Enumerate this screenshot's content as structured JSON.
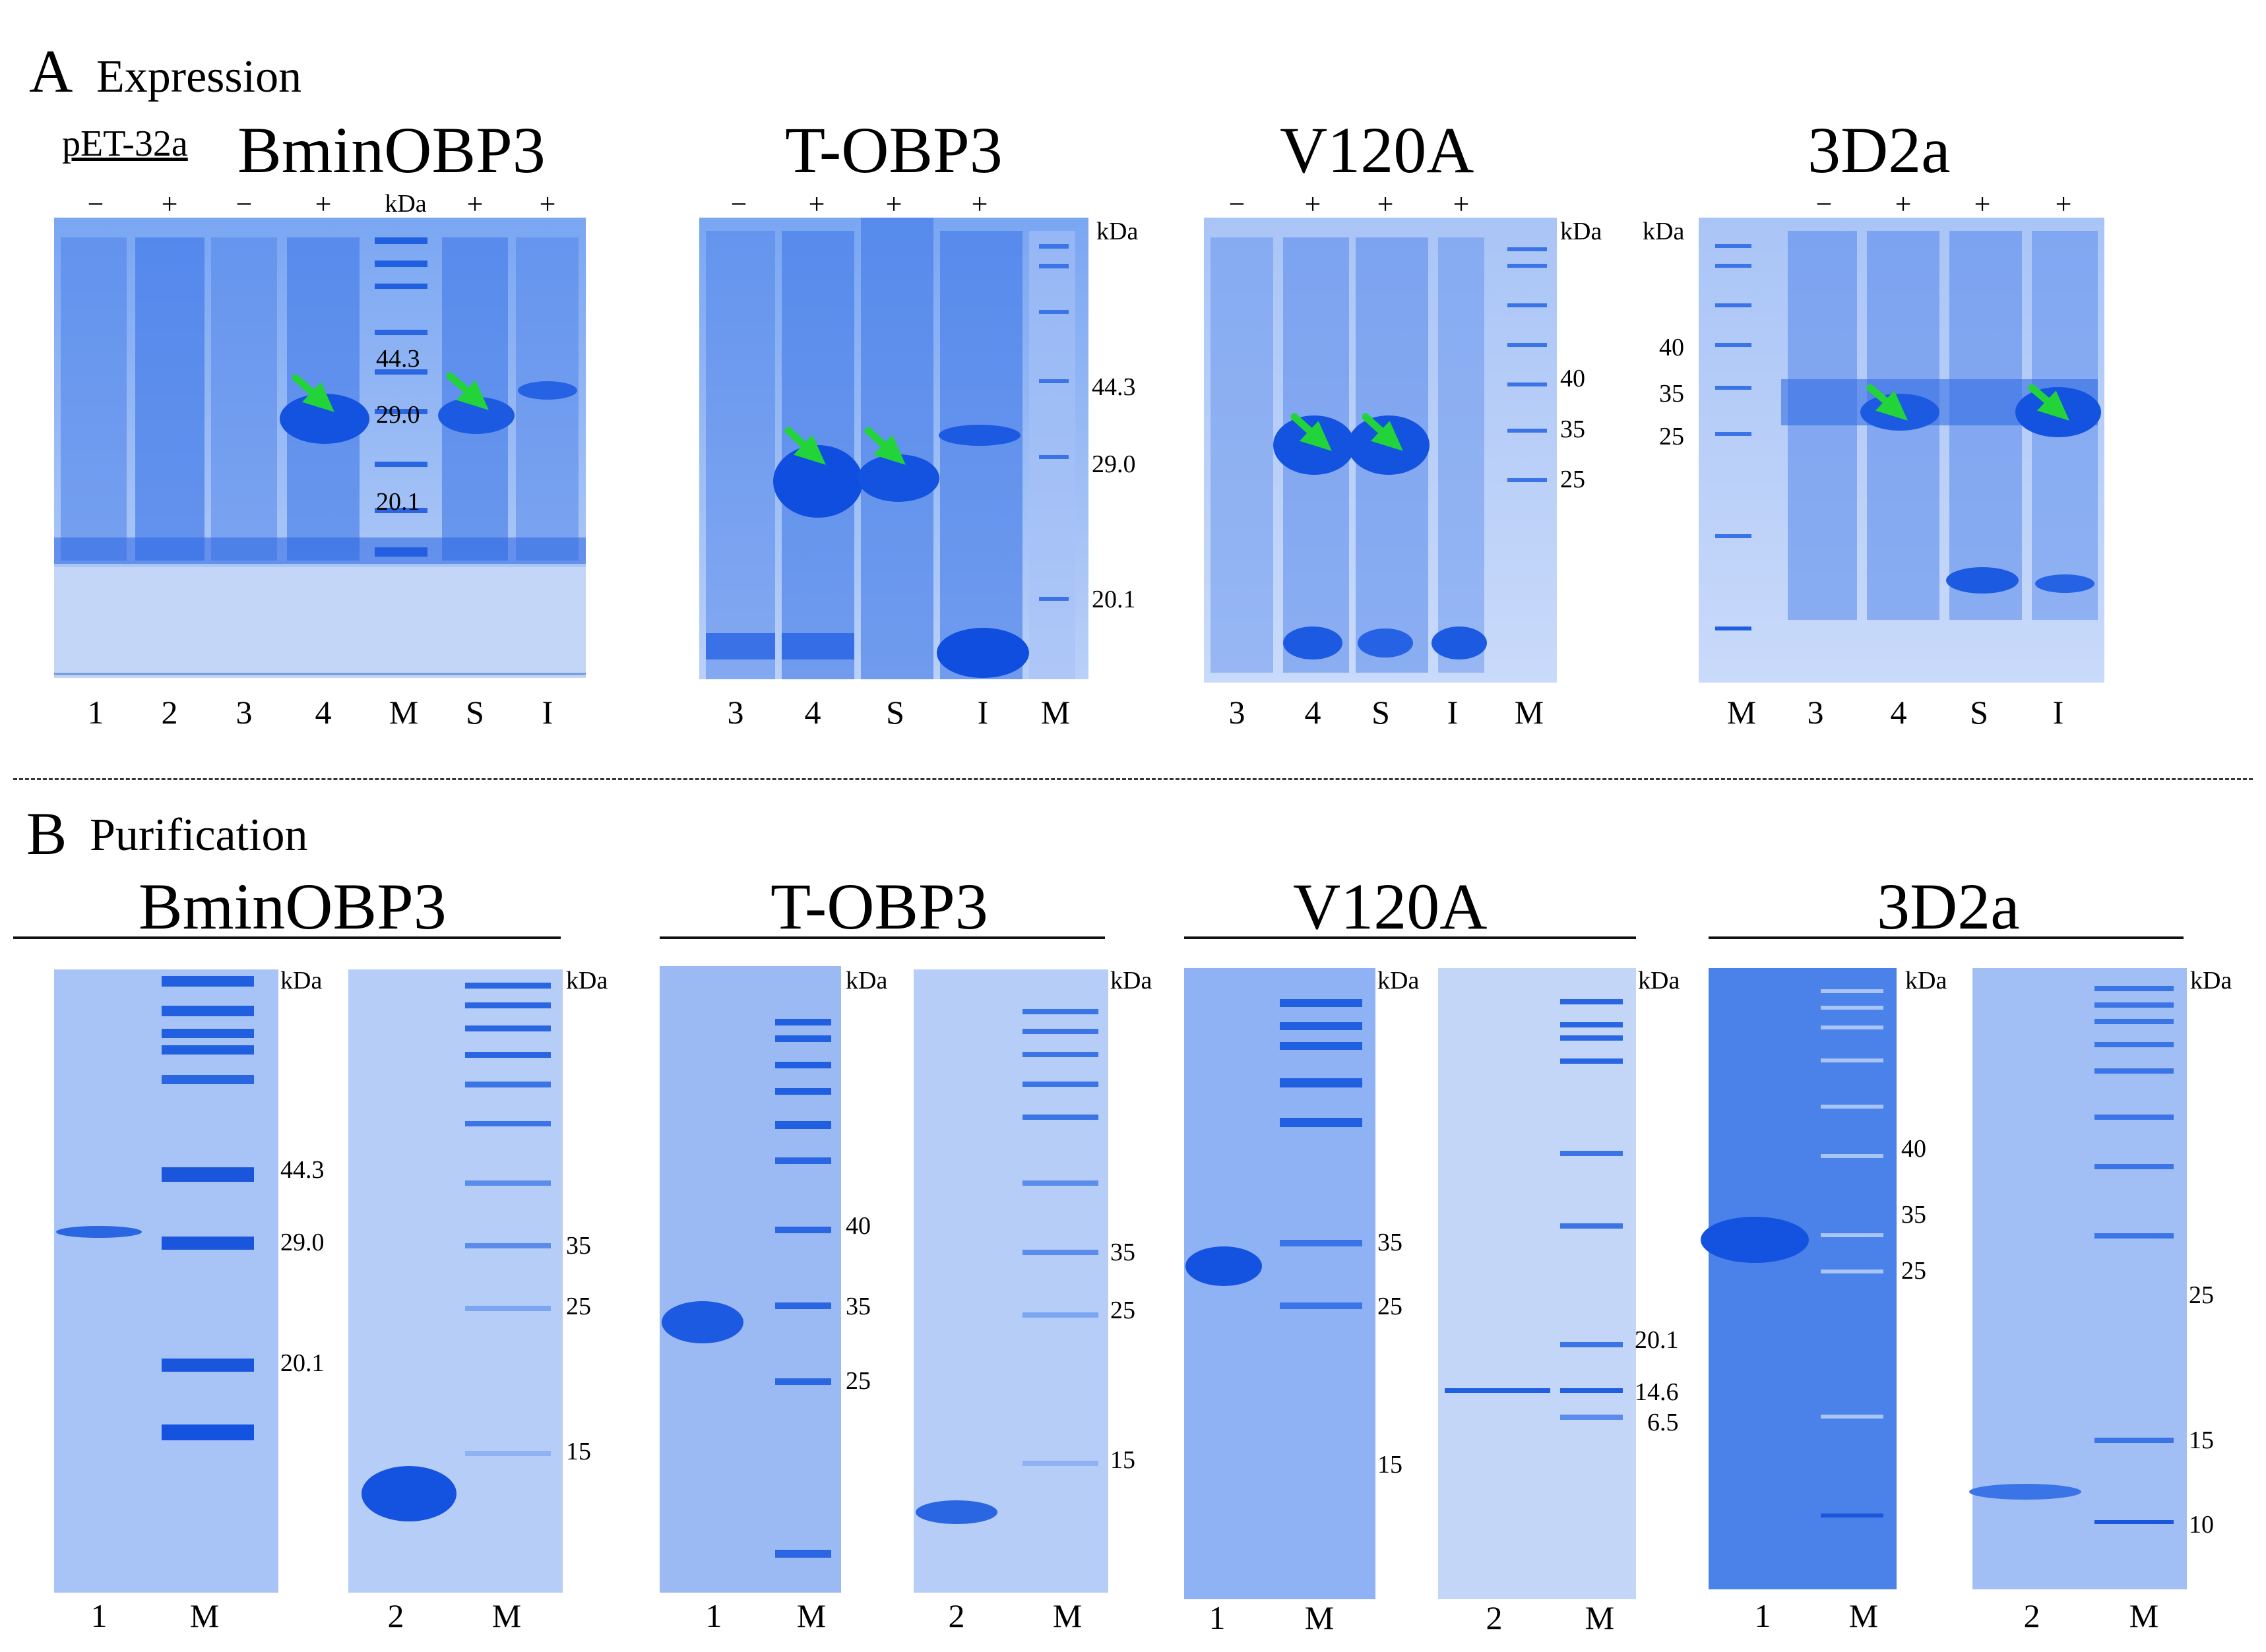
{
  "figure": {
    "panel_a": {
      "letter": "A",
      "title": "Expression"
    },
    "panel_b": {
      "letter": "B",
      "title": "Purification"
    },
    "vector_label": "pET-32a",
    "unit_label": "kDa",
    "arrow_color": "#22d43a",
    "gel_color": "#6b9cf0"
  },
  "expression": [
    {
      "protein": "BminOBP3",
      "induction": [
        "−",
        "+",
        "−",
        "+",
        "kDa",
        "+",
        "+"
      ],
      "lanes": [
        "1",
        "2",
        "3",
        "4",
        "M",
        "S",
        "I"
      ],
      "markers": [
        "44.3",
        "29.0",
        "20.1"
      ]
    },
    {
      "protein": "T-OBP3",
      "induction": [
        "−",
        "+",
        "+",
        "+"
      ],
      "lanes": [
        "3",
        "4",
        "S",
        "I",
        "M"
      ],
      "markers": [
        "44.3",
        "29.0",
        "20.1"
      ]
    },
    {
      "protein": "V120A",
      "induction": [
        "−",
        "+",
        "+",
        "+"
      ],
      "lanes": [
        "3",
        "4",
        "S",
        "I",
        "M"
      ],
      "markers": [
        "40",
        "35",
        "25"
      ]
    },
    {
      "protein": "3D2a",
      "induction": [
        "−",
        "+",
        "+",
        "+"
      ],
      "lanes": [
        "M",
        "3",
        "4",
        "S",
        "I"
      ],
      "markers": [
        "40",
        "35",
        "25"
      ]
    }
  ],
  "purification": [
    {
      "protein": "BminOBP3",
      "gels": [
        {
          "lanes": [
            "1",
            "M"
          ],
          "markers": [
            "44.3",
            "29.0",
            "20.1"
          ]
        },
        {
          "lanes": [
            "2",
            "M"
          ],
          "markers": [
            "35",
            "25",
            "15"
          ]
        }
      ]
    },
    {
      "protein": "T-OBP3",
      "gels": [
        {
          "lanes": [
            "1",
            "M"
          ],
          "markers": [
            "40",
            "35",
            "25"
          ]
        },
        {
          "lanes": [
            "2",
            "M"
          ],
          "markers": [
            "35",
            "25",
            "15"
          ]
        }
      ]
    },
    {
      "protein": "V120A",
      "gels": [
        {
          "lanes": [
            "1",
            "M"
          ],
          "markers": [
            "35",
            "25",
            "15"
          ]
        },
        {
          "lanes": [
            "2",
            "M"
          ],
          "markers": [
            "20.1",
            "14.6",
            "6.5"
          ]
        }
      ]
    },
    {
      "protein": "3D2a",
      "gels": [
        {
          "lanes": [
            "1",
            "M"
          ],
          "markers": [
            "40",
            "35",
            "25"
          ]
        },
        {
          "lanes": [
            "2",
            "M"
          ],
          "markers": [
            "25",
            "15",
            "10"
          ]
        }
      ]
    }
  ]
}
